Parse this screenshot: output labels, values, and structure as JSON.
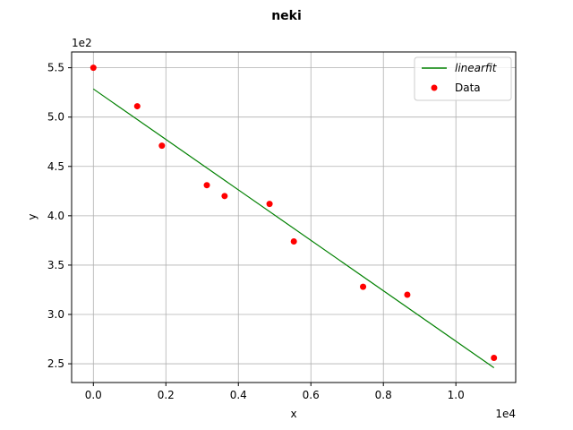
{
  "chart_data": {
    "type": "scatter",
    "title": "neki",
    "xlabel": "x",
    "ylabel": "y",
    "x_offset_text": "1e4",
    "y_offset_text": "1e2",
    "xlim": [
      -0.06,
      1.165
    ],
    "ylim": [
      2.31,
      5.66
    ],
    "x_ticks": [
      0.0,
      0.2,
      0.4,
      0.6,
      0.8,
      1.0
    ],
    "x_tick_labels": [
      "0.0",
      "0.2",
      "0.4",
      "0.6",
      "0.8",
      "1.0"
    ],
    "y_ticks": [
      2.5,
      3.0,
      3.5,
      4.0,
      4.5,
      5.0,
      5.5
    ],
    "y_tick_labels": [
      "2.5",
      "3.0",
      "3.5",
      "4.0",
      "4.5",
      "5.0",
      "5.5"
    ],
    "grid": true,
    "legend_position": "top-right",
    "series": [
      {
        "name": "linearfit",
        "kind": "line",
        "color": "#008000",
        "x": [
          0.0,
          1.105
        ],
        "y": [
          5.285,
          2.46
        ]
      },
      {
        "name": "Data",
        "kind": "scatter",
        "color": "#ff0000",
        "x": [
          0.0,
          0.121,
          0.189,
          0.313,
          0.362,
          0.486,
          0.553,
          0.744,
          0.866,
          1.105
        ],
        "y": [
          5.5,
          5.11,
          4.71,
          4.31,
          4.2,
          4.12,
          3.74,
          3.28,
          3.2,
          2.56
        ]
      }
    ]
  }
}
